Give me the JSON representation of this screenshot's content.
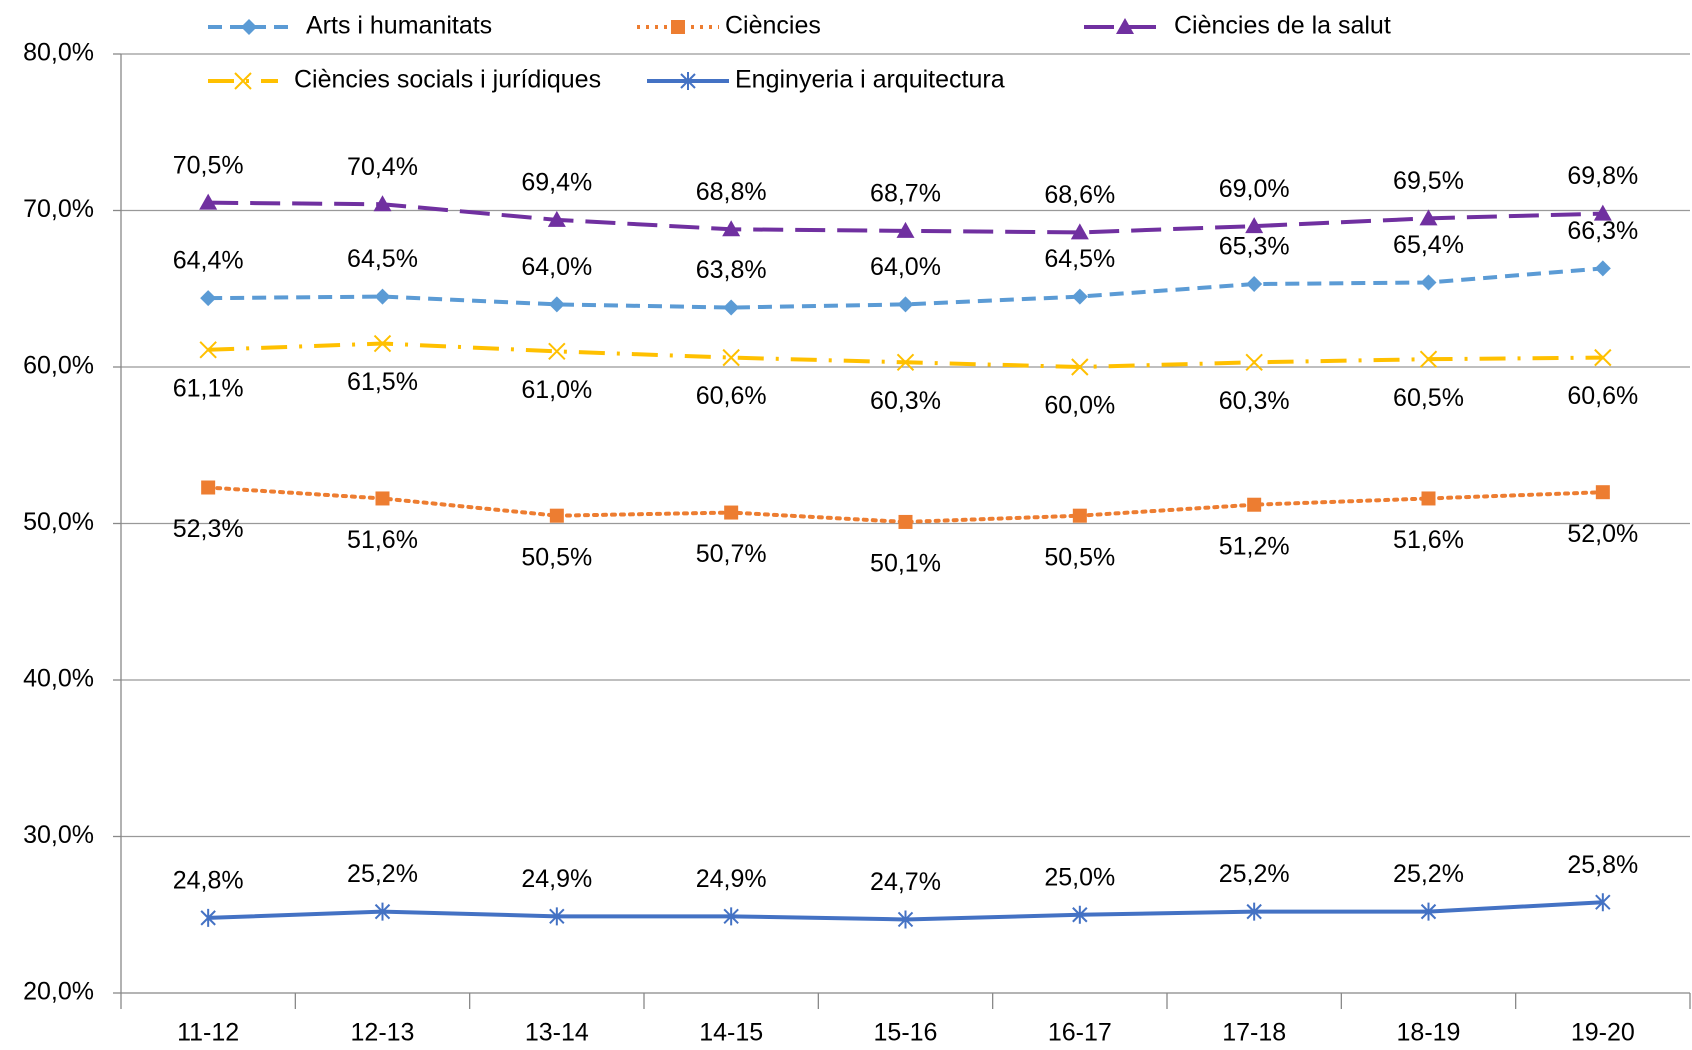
{
  "chart_data": {
    "type": "line",
    "categories": [
      "11-12",
      "12-13",
      "13-14",
      "14-15",
      "15-16",
      "16-17",
      "17-18",
      "18-19",
      "19-20"
    ],
    "series": [
      {
        "name": "Arts i humanitats",
        "color": "#5b9bd5",
        "dash": "dashed",
        "marker": "diamond",
        "label_position": "above",
        "values": [
          64.4,
          64.5,
          64.0,
          63.8,
          64.0,
          64.5,
          65.3,
          65.4,
          66.3
        ],
        "value_labels": [
          "64,4%",
          "64,5%",
          "64,0%",
          "63,8%",
          "64,0%",
          "64,5%",
          "65,3%",
          "65,4%",
          "66,3%"
        ]
      },
      {
        "name": "Ciències",
        "color": "#ed7d31",
        "dash": "dotted",
        "marker": "square",
        "label_position": "below",
        "values": [
          52.3,
          51.6,
          50.5,
          50.7,
          50.1,
          50.5,
          51.2,
          51.6,
          52.0
        ],
        "value_labels": [
          "52,3%",
          "51,6%",
          "50,5%",
          "50,7%",
          "50,1%",
          "50,5%",
          "51,2%",
          "51,6%",
          "52,0%"
        ]
      },
      {
        "name": "Ciències de la salut",
        "color": "#7030a0",
        "dash": "longdash",
        "marker": "triangle",
        "label_position": "above",
        "values": [
          70.5,
          70.4,
          69.4,
          68.8,
          68.7,
          68.6,
          69.0,
          69.5,
          69.8
        ],
        "value_labels": [
          "70,5%",
          "70,4%",
          "69,4%",
          "68,8%",
          "68,7%",
          "68,6%",
          "69,0%",
          "69,5%",
          "69,8%"
        ]
      },
      {
        "name": "Ciències socials i jurídiques",
        "color": "#ffc000",
        "dash": "dashdot",
        "marker": "x",
        "label_position": "below",
        "values": [
          61.1,
          61.5,
          61.0,
          60.6,
          60.3,
          60.0,
          60.3,
          60.5,
          60.6
        ],
        "value_labels": [
          "61,1%",
          "61,5%",
          "61,0%",
          "60,6%",
          "60,3%",
          "60,0%",
          "60,3%",
          "60,5%",
          "60,6%"
        ]
      },
      {
        "name": "Enginyeria i arquitectura",
        "color": "#4472c4",
        "dash": "solid",
        "marker": "star",
        "label_position": "above",
        "values": [
          24.8,
          25.2,
          24.9,
          24.9,
          24.7,
          25.0,
          25.2,
          25.2,
          25.8
        ],
        "value_labels": [
          "24,8%",
          "25,2%",
          "24,9%",
          "24,9%",
          "24,7%",
          "25,0%",
          "25,2%",
          "25,2%",
          "25,8%"
        ]
      }
    ],
    "ylim": [
      20,
      80
    ],
    "yticks": [
      {
        "value": 20,
        "label": "20,0%"
      },
      {
        "value": 30,
        "label": "30,0%"
      },
      {
        "value": 40,
        "label": "40,0%"
      },
      {
        "value": 50,
        "label": "50,0%"
      },
      {
        "value": 60,
        "label": "60,0%"
      },
      {
        "value": 70,
        "label": "70,0%"
      },
      {
        "value": 80,
        "label": "80,0%"
      }
    ],
    "grid": true,
    "legend": "top"
  }
}
